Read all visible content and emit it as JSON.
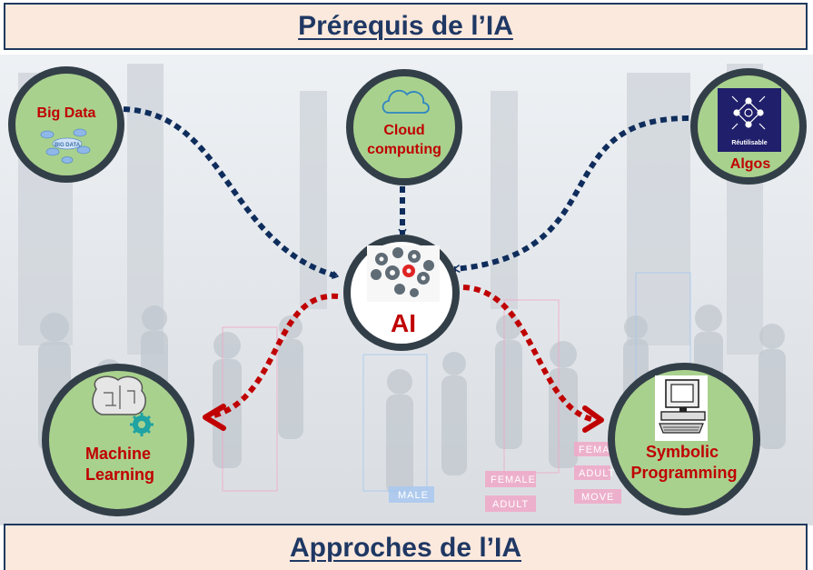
{
  "header": {
    "title": "Prérequis de l’IA"
  },
  "footer": {
    "title": "Approches de l’IA"
  },
  "nodes": {
    "big_data": {
      "label": "Big Data",
      "icon_text": "BIG DATA",
      "icon": "cloud-network-icon"
    },
    "cloud": {
      "label_line1": "Cloud",
      "label_line2": "computing",
      "icon": "cloud-icon"
    },
    "algos": {
      "label": "Algos",
      "icon_text": "Réutilisable",
      "icon": "network-graph-icon"
    },
    "ai": {
      "label": "AI",
      "icon": "gear-brain-icon"
    },
    "ml": {
      "label_line1": "Machine",
      "label_line2": "Learning",
      "icon": "circuit-brain-icon"
    },
    "symbolic": {
      "label_line1": "Symbolic",
      "label_line2": "Programming",
      "icon": "computer-icon"
    }
  },
  "background_tags": [
    "MALE",
    "FEMALE",
    "ADULT",
    "FEMALE",
    "ADULT",
    "MOVE"
  ],
  "colors": {
    "node_fill": "#a9d18e",
    "node_border": "#333f48",
    "label": "#c00000",
    "prereq_arrow": "#0f2d5c",
    "approach_arrow": "#c00000",
    "banner_bg": "#fce9dd",
    "banner_text": "#1f3864"
  }
}
